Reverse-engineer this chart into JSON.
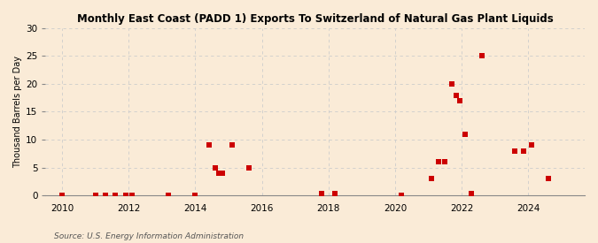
{
  "title": "Monthly East Coast (PADD 1) Exports To Switzerland of Natural Gas Plant Liquids",
  "ylabel": "Thousand Barrels per Day",
  "source": "Source: U.S. Energy Information Administration",
  "background_color": "#faebd7",
  "scatter_color": "#cc0000",
  "marker": "s",
  "marker_size": 18,
  "xlim": [
    2009.5,
    2025.7
  ],
  "ylim": [
    0,
    30
  ],
  "yticks": [
    0,
    5,
    10,
    15,
    20,
    25,
    30
  ],
  "xticks": [
    2010,
    2012,
    2014,
    2016,
    2018,
    2020,
    2022,
    2024
  ],
  "grid_color": "#cccccc",
  "data_points": [
    [
      2010.0,
      0.0
    ],
    [
      2011.0,
      0.0
    ],
    [
      2011.3,
      0.0
    ],
    [
      2011.6,
      0.0
    ],
    [
      2011.9,
      0.0
    ],
    [
      2012.1,
      0.0
    ],
    [
      2013.2,
      0.0
    ],
    [
      2014.0,
      0.0
    ],
    [
      2014.4,
      9.0
    ],
    [
      2014.6,
      5.0
    ],
    [
      2014.7,
      4.0
    ],
    [
      2014.8,
      4.0
    ],
    [
      2015.1,
      9.0
    ],
    [
      2015.6,
      5.0
    ],
    [
      2017.8,
      0.3
    ],
    [
      2018.2,
      0.3
    ],
    [
      2020.2,
      0.0
    ],
    [
      2021.1,
      3.0
    ],
    [
      2021.3,
      6.0
    ],
    [
      2021.5,
      6.0
    ],
    [
      2021.7,
      20.0
    ],
    [
      2021.85,
      18.0
    ],
    [
      2021.95,
      17.0
    ],
    [
      2022.1,
      11.0
    ],
    [
      2022.3,
      0.3
    ],
    [
      2022.6,
      25.0
    ],
    [
      2023.6,
      8.0
    ],
    [
      2023.85,
      8.0
    ],
    [
      2024.1,
      9.0
    ],
    [
      2024.6,
      3.0
    ]
  ]
}
